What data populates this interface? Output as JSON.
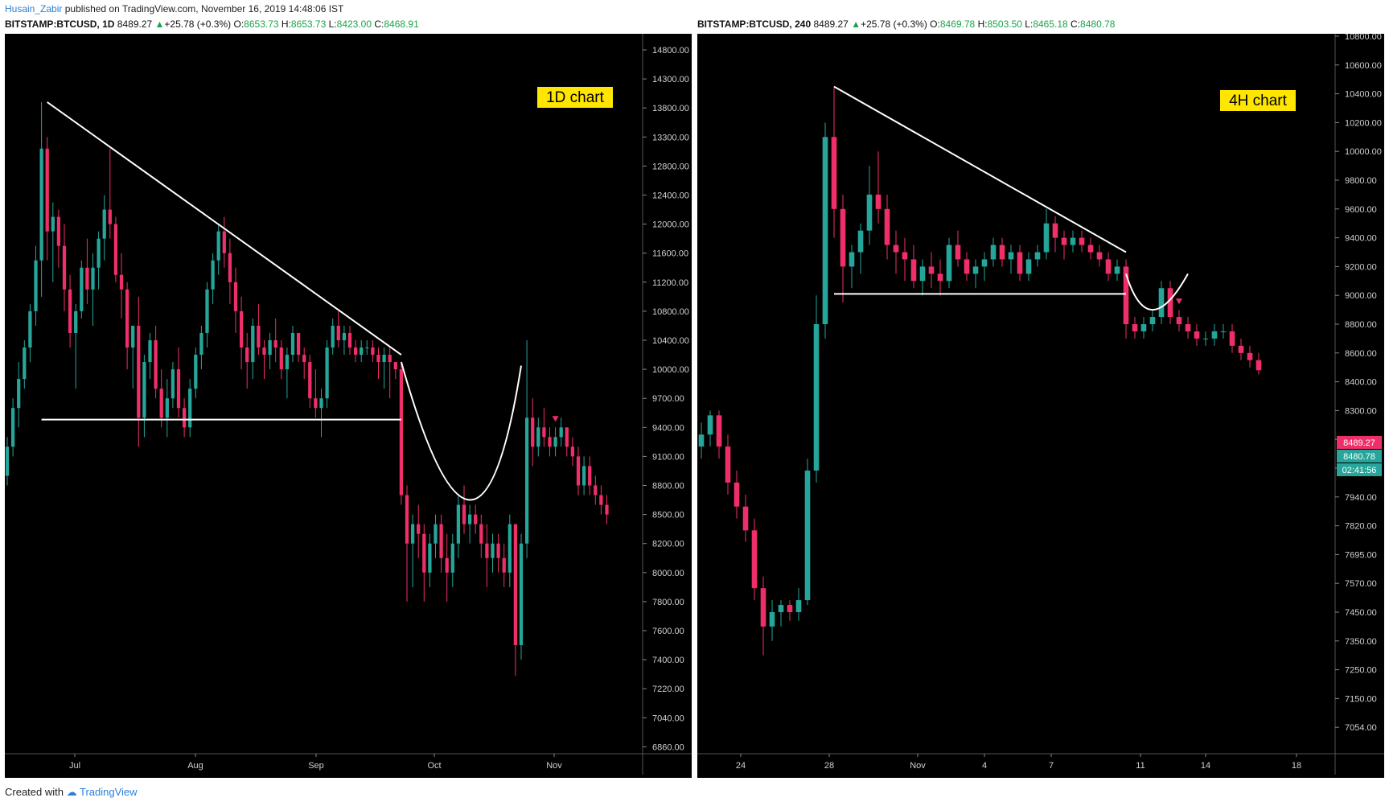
{
  "header": {
    "author": "Husain_Zabir",
    "published_text": "published on TradingView.com, November 16, 2019 14:48:06 IST"
  },
  "footer": {
    "created_with": "Created with",
    "brand": "TradingView"
  },
  "colors": {
    "up": "#26a69a",
    "down": "#ef2f6a",
    "background": "#000000",
    "line": "#ffffff",
    "label_bg": "#ffe600"
  },
  "charts": [
    {
      "symbol": "BITSTAMP:BTCUSD, 1D",
      "price": "8489.27",
      "change": "+25.78 (+0.3%)",
      "open": "8653.73",
      "high": "8653.73",
      "low": "8423.00",
      "close": "8468.91",
      "label": "1D chart",
      "price_ticks": [
        "14800.00",
        "14300.00",
        "13800.00",
        "13300.00",
        "12800.00",
        "12400.00",
        "12000.00",
        "11600.00",
        "11200.00",
        "10800.00",
        "10400.00",
        "10000.00",
        "9700.00",
        "9400.00",
        "9100.00",
        "8800.00",
        "8500.00",
        "8200.00",
        "8000.00",
        "7800.00",
        "7600.00",
        "7400.00",
        "7220.00",
        "7040.00",
        "6860.00"
      ],
      "date_ticks": [
        "Jul",
        "Aug",
        "Sep",
        "Oct",
        "Nov"
      ],
      "ohlc_series": [
        [
          8900,
          9300,
          8800,
          9200
        ],
        [
          9200,
          9700,
          9100,
          9600
        ],
        [
          9600,
          10100,
          9400,
          9900
        ],
        [
          9900,
          10400,
          9800,
          10300
        ],
        [
          10300,
          10900,
          10100,
          10800
        ],
        [
          10800,
          11700,
          10600,
          11500
        ],
        [
          11500,
          13900,
          11000,
          13100
        ],
        [
          13100,
          13300,
          11500,
          11900
        ],
        [
          11900,
          12300,
          11200,
          12100
        ],
        [
          12100,
          12200,
          11400,
          11700
        ],
        [
          11700,
          12000,
          10800,
          11100
        ],
        [
          11100,
          11300,
          10300,
          10500
        ],
        [
          10500,
          10900,
          9800,
          10800
        ],
        [
          10800,
          11500,
          10700,
          11400
        ],
        [
          11400,
          11800,
          10900,
          11100
        ],
        [
          11100,
          11600,
          10600,
          11400
        ],
        [
          11400,
          11900,
          11100,
          11800
        ],
        [
          11800,
          12400,
          11500,
          12200
        ],
        [
          12200,
          13100,
          11800,
          12000
        ],
        [
          12000,
          12100,
          11200,
          11300
        ],
        [
          11300,
          11600,
          10700,
          11100
        ],
        [
          11100,
          11200,
          10000,
          10300
        ],
        [
          10300,
          10600,
          9800,
          10600
        ],
        [
          10600,
          11000,
          9200,
          9500
        ],
        [
          9500,
          10200,
          9300,
          10100
        ],
        [
          10100,
          10500,
          9900,
          10400
        ],
        [
          10400,
          10600,
          9700,
          9800
        ],
        [
          9800,
          10000,
          9400,
          9500
        ],
        [
          9500,
          9900,
          9300,
          9700
        ],
        [
          9700,
          10100,
          9600,
          10000
        ],
        [
          10000,
          10300,
          9500,
          9600
        ],
        [
          9600,
          9700,
          9300,
          9400
        ],
        [
          9400,
          9900,
          9300,
          9800
        ],
        [
          9800,
          10300,
          9700,
          10200
        ],
        [
          10200,
          10600,
          10000,
          10500
        ],
        [
          10500,
          11200,
          10300,
          11100
        ],
        [
          11100,
          11600,
          10900,
          11500
        ],
        [
          11500,
          12000,
          11300,
          11900
        ],
        [
          11900,
          12100,
          11400,
          11600
        ],
        [
          11600,
          11800,
          10900,
          11200
        ],
        [
          11200,
          11400,
          10500,
          10800
        ],
        [
          10800,
          11000,
          10000,
          10300
        ],
        [
          10300,
          10500,
          9800,
          10100
        ],
        [
          10100,
          10700,
          9900,
          10600
        ],
        [
          10600,
          10900,
          10200,
          10300
        ],
        [
          10300,
          10400,
          9900,
          10200
        ],
        [
          10200,
          10500,
          10000,
          10400
        ],
        [
          10400,
          10700,
          10100,
          10300
        ],
        [
          10300,
          10400,
          9900,
          10000
        ],
        [
          10000,
          10300,
          9700,
          10200
        ],
        [
          10200,
          10600,
          10100,
          10500
        ],
        [
          10500,
          10500,
          10100,
          10200
        ],
        [
          10200,
          10300,
          9900,
          10100
        ],
        [
          10100,
          10200,
          9600,
          9700
        ],
        [
          9700,
          10000,
          9500,
          9600
        ],
        [
          9600,
          9800,
          9300,
          9700
        ],
        [
          9700,
          10400,
          9600,
          10300
        ],
        [
          10300,
          10700,
          10200,
          10600
        ],
        [
          10600,
          10800,
          10300,
          10400
        ],
        [
          10400,
          10600,
          10200,
          10500
        ],
        [
          10500,
          10600,
          10200,
          10300
        ],
        [
          10300,
          10400,
          10100,
          10200
        ],
        [
          10200,
          10400,
          10100,
          10300
        ],
        [
          10300,
          10400,
          10200,
          10300
        ],
        [
          10300,
          10400,
          10100,
          10200
        ],
        [
          10200,
          10300,
          9900,
          10100
        ],
        [
          10100,
          10300,
          9800,
          10200
        ],
        [
          10200,
          10300,
          9700,
          10100
        ],
        [
          10100,
          10100,
          9900,
          10000
        ],
        [
          10000,
          10100,
          8600,
          8700
        ],
        [
          8700,
          8800,
          7800,
          8200
        ],
        [
          8200,
          8500,
          7900,
          8400
        ],
        [
          8400,
          8600,
          8100,
          8300
        ],
        [
          8300,
          8400,
          7800,
          8000
        ],
        [
          8000,
          8300,
          7900,
          8200
        ],
        [
          8200,
          8500,
          8100,
          8400
        ],
        [
          8400,
          8500,
          8000,
          8100
        ],
        [
          8100,
          8300,
          7800,
          8000
        ],
        [
          8000,
          8300,
          7900,
          8200
        ],
        [
          8200,
          8700,
          8100,
          8600
        ],
        [
          8600,
          8800,
          8300,
          8400
        ],
        [
          8400,
          8600,
          8200,
          8500
        ],
        [
          8500,
          8600,
          8300,
          8400
        ],
        [
          8400,
          8500,
          8100,
          8200
        ],
        [
          8200,
          8400,
          7900,
          8100
        ],
        [
          8100,
          8300,
          8000,
          8200
        ],
        [
          8200,
          8300,
          8000,
          8100
        ],
        [
          8100,
          8200,
          7900,
          8000
        ],
        [
          8000,
          8500,
          7900,
          8400
        ],
        [
          8400,
          8400,
          7300,
          7500
        ],
        [
          7500,
          8300,
          7400,
          8200
        ],
        [
          8200,
          10400,
          8100,
          9500
        ],
        [
          9500,
          9700,
          9000,
          9200
        ],
        [
          9200,
          9500,
          9100,
          9400
        ],
        [
          9400,
          9600,
          9200,
          9300
        ],
        [
          9300,
          9400,
          9100,
          9200
        ],
        [
          9200,
          9400,
          9100,
          9300
        ],
        [
          9300,
          9500,
          9200,
          9400
        ],
        [
          9400,
          9400,
          9100,
          9200
        ],
        [
          9200,
          9300,
          9000,
          9100
        ],
        [
          9100,
          9200,
          8700,
          8800
        ],
        [
          8800,
          9100,
          8700,
          9000
        ],
        [
          9000,
          9100,
          8700,
          8800
        ],
        [
          8800,
          8900,
          8600,
          8700
        ],
        [
          8700,
          8800,
          8500,
          8600
        ],
        [
          8600,
          8700,
          8400,
          8500
        ]
      ],
      "marker_index": 96,
      "annotations": {
        "trendline": [
          [
            7,
            13900
          ],
          [
            69,
            10200
          ]
        ],
        "support": [
          [
            6,
            9480
          ],
          [
            69,
            9480
          ]
        ],
        "arc": [
          [
            69,
            10100
          ],
          [
            81,
            8650
          ],
          [
            90,
            10050
          ]
        ]
      }
    },
    {
      "symbol": "BITSTAMP:BTCUSD, 240",
      "price": "8489.27",
      "change": "+25.78 (+0.3%)",
      "open": "8469.78",
      "high": "8503.50",
      "low": "8465.18",
      "close": "8480.78",
      "label": "4H chart",
      "price_ticks": [
        "10800.00",
        "10600.00",
        "10400.00",
        "10200.00",
        "10000.00",
        "9800.00",
        "9600.00",
        "9400.00",
        "9200.00",
        "9000.00",
        "8800.00",
        "8600.00",
        "8400.00",
        "8300.00",
        "8180.00",
        "8060.00",
        "7940.00",
        "7820.00",
        "7695.00",
        "7570.00",
        "7450.00",
        "7350.00",
        "7250.00",
        "7150.00",
        "7054.00"
      ],
      "date_ticks": [
        "24",
        "28",
        "Nov",
        "4",
        "7",
        "11",
        "14",
        "18"
      ],
      "last_price_tag": "8489.27",
      "close_tag": "8480.78",
      "countdown": "02:41:56",
      "ohlc_series": [
        [
          8150,
          8250,
          8100,
          8200
        ],
        [
          8200,
          8300,
          8150,
          8280
        ],
        [
          8280,
          8300,
          8100,
          8150
        ],
        [
          8150,
          8200,
          7950,
          8000
        ],
        [
          8000,
          8050,
          7850,
          7900
        ],
        [
          7900,
          7950,
          7750,
          7800
        ],
        [
          7800,
          7850,
          7500,
          7550
        ],
        [
          7550,
          7600,
          7300,
          7400
        ],
        [
          7400,
          7500,
          7350,
          7450
        ],
        [
          7450,
          7500,
          7400,
          7480
        ],
        [
          7480,
          7500,
          7420,
          7450
        ],
        [
          7450,
          7550,
          7420,
          7500
        ],
        [
          7500,
          8100,
          7480,
          8050
        ],
        [
          8050,
          9000,
          8000,
          8800
        ],
        [
          8800,
          10200,
          8700,
          10100
        ],
        [
          10100,
          10450,
          9400,
          9600
        ],
        [
          9600,
          9700,
          8950,
          9200
        ],
        [
          9200,
          9350,
          9050,
          9300
        ],
        [
          9300,
          9500,
          9150,
          9450
        ],
        [
          9450,
          9900,
          9350,
          9700
        ],
        [
          9700,
          10000,
          9500,
          9600
        ],
        [
          9600,
          9700,
          9250,
          9350
        ],
        [
          9350,
          9450,
          9150,
          9300
        ],
        [
          9300,
          9400,
          9100,
          9250
        ],
        [
          9250,
          9350,
          9050,
          9100
        ],
        [
          9100,
          9250,
          9000,
          9200
        ],
        [
          9200,
          9300,
          9050,
          9150
        ],
        [
          9150,
          9250,
          9000,
          9100
        ],
        [
          9100,
          9400,
          9050,
          9350
        ],
        [
          9350,
          9450,
          9200,
          9250
        ],
        [
          9250,
          9300,
          9100,
          9150
        ],
        [
          9150,
          9250,
          9050,
          9200
        ],
        [
          9200,
          9300,
          9100,
          9250
        ],
        [
          9250,
          9400,
          9200,
          9350
        ],
        [
          9350,
          9400,
          9200,
          9250
        ],
        [
          9250,
          9350,
          9150,
          9300
        ],
        [
          9300,
          9350,
          9100,
          9150
        ],
        [
          9150,
          9300,
          9100,
          9250
        ],
        [
          9250,
          9350,
          9200,
          9300
        ],
        [
          9300,
          9600,
          9250,
          9500
        ],
        [
          9500,
          9550,
          9300,
          9400
        ],
        [
          9400,
          9450,
          9250,
          9350
        ],
        [
          9350,
          9450,
          9300,
          9400
        ],
        [
          9400,
          9450,
          9300,
          9350
        ],
        [
          9350,
          9400,
          9250,
          9300
        ],
        [
          9300,
          9350,
          9200,
          9250
        ],
        [
          9250,
          9300,
          9100,
          9150
        ],
        [
          9150,
          9250,
          9100,
          9200
        ],
        [
          9200,
          9250,
          8700,
          8800
        ],
        [
          8800,
          8850,
          8700,
          8750
        ],
        [
          8750,
          8850,
          8700,
          8800
        ],
        [
          8800,
          8900,
          8750,
          8850
        ],
        [
          8850,
          9100,
          8800,
          9050
        ],
        [
          9050,
          9100,
          8800,
          8850
        ],
        [
          8850,
          8900,
          8750,
          8800
        ],
        [
          8800,
          8850,
          8700,
          8750
        ],
        [
          8750,
          8800,
          8650,
          8700
        ],
        [
          8700,
          8750,
          8650,
          8700
        ],
        [
          8700,
          8800,
          8650,
          8750
        ],
        [
          8750,
          8800,
          8700,
          8750
        ],
        [
          8750,
          8800,
          8600,
          8650
        ],
        [
          8650,
          8700,
          8550,
          8600
        ],
        [
          8600,
          8650,
          8500,
          8550
        ],
        [
          8550,
          8600,
          8450,
          8480
        ]
      ],
      "marker_index": 54,
      "annotations": {
        "trendline": [
          [
            15,
            10450
          ],
          [
            48,
            9300
          ]
        ],
        "support": [
          [
            15,
            9010
          ],
          [
            48,
            9010
          ]
        ],
        "arc": [
          [
            48,
            9150
          ],
          [
            51,
            8900
          ],
          [
            55,
            9150
          ]
        ]
      }
    }
  ]
}
